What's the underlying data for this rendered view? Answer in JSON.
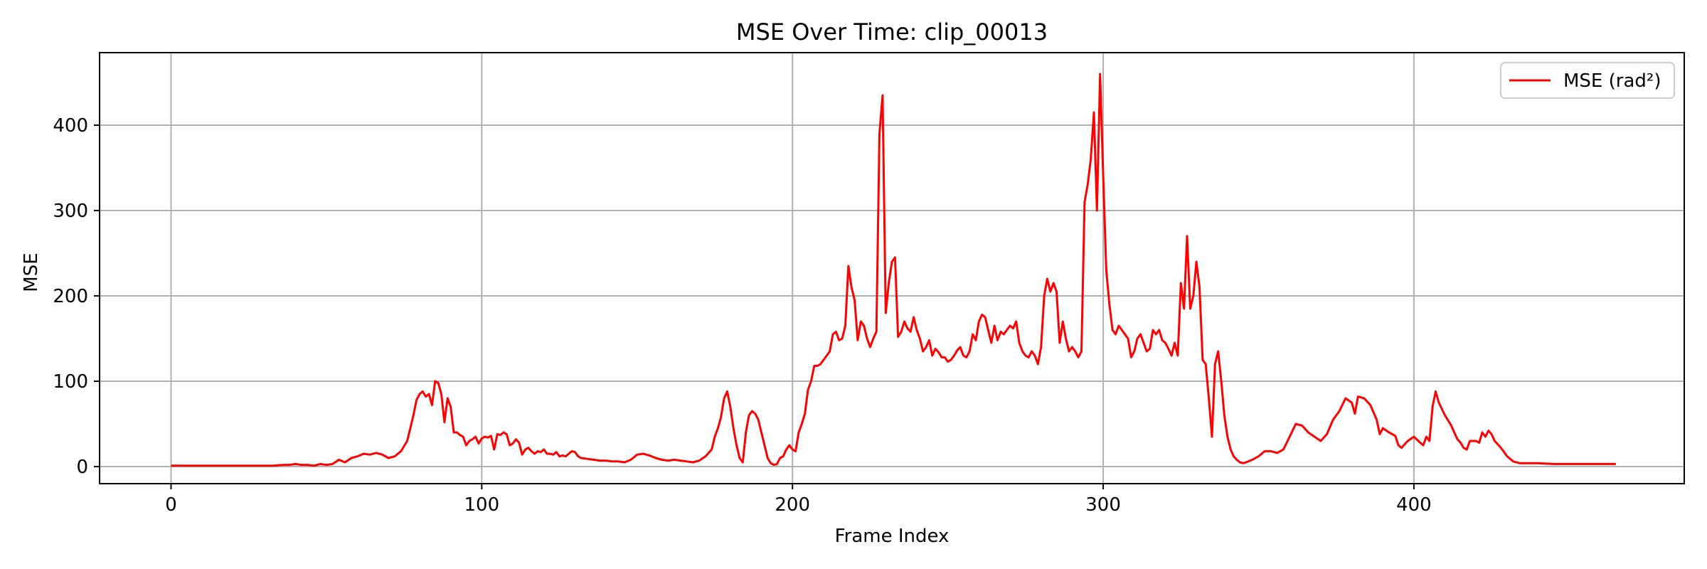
{
  "chart_data": {
    "type": "line",
    "title": "MSE Over Time: clip_00013",
    "xlabel": "Frame Index",
    "ylabel": "MSE",
    "xlim": [
      -23,
      487
    ],
    "ylim": [
      -20,
      485
    ],
    "xticks": [
      0,
      100,
      200,
      300,
      400
    ],
    "yticks": [
      0,
      100,
      200,
      300,
      400
    ],
    "grid": true,
    "legend_position": "top-right",
    "series": [
      {
        "name": "MSE (rad²)",
        "color": "#ff0000",
        "points": [
          [
            0,
            1
          ],
          [
            10,
            1
          ],
          [
            20,
            1
          ],
          [
            30,
            1
          ],
          [
            33,
            1
          ],
          [
            36,
            2
          ],
          [
            38,
            2
          ],
          [
            40,
            3
          ],
          [
            42,
            2
          ],
          [
            44,
            2
          ],
          [
            46,
            1
          ],
          [
            48,
            3
          ],
          [
            50,
            2
          ],
          [
            52,
            3
          ],
          [
            54,
            8
          ],
          [
            56,
            5
          ],
          [
            58,
            10
          ],
          [
            60,
            12
          ],
          [
            62,
            15
          ],
          [
            64,
            14
          ],
          [
            66,
            16
          ],
          [
            68,
            14
          ],
          [
            70,
            10
          ],
          [
            72,
            12
          ],
          [
            74,
            18
          ],
          [
            76,
            30
          ],
          [
            77,
            45
          ],
          [
            78,
            60
          ],
          [
            79,
            78
          ],
          [
            80,
            85
          ],
          [
            81,
            88
          ],
          [
            82,
            82
          ],
          [
            83,
            85
          ],
          [
            84,
            72
          ],
          [
            85,
            100
          ],
          [
            86,
            98
          ],
          [
            87,
            85
          ],
          [
            88,
            52
          ],
          [
            89,
            80
          ],
          [
            90,
            70
          ],
          [
            91,
            40
          ],
          [
            92,
            40
          ],
          [
            93,
            37
          ],
          [
            94,
            35
          ],
          [
            95,
            25
          ],
          [
            96,
            30
          ],
          [
            97,
            32
          ],
          [
            98,
            35
          ],
          [
            99,
            27
          ],
          [
            100,
            33
          ],
          [
            101,
            35
          ],
          [
            102,
            34
          ],
          [
            103,
            36
          ],
          [
            104,
            20
          ],
          [
            105,
            38
          ],
          [
            106,
            37
          ],
          [
            107,
            40
          ],
          [
            108,
            38
          ],
          [
            109,
            25
          ],
          [
            110,
            27
          ],
          [
            111,
            32
          ],
          [
            112,
            28
          ],
          [
            113,
            14
          ],
          [
            114,
            20
          ],
          [
            115,
            22
          ],
          [
            116,
            18
          ],
          [
            117,
            15
          ],
          [
            118,
            18
          ],
          [
            119,
            17
          ],
          [
            120,
            20
          ],
          [
            121,
            15
          ],
          [
            122,
            15
          ],
          [
            123,
            14
          ],
          [
            124,
            17
          ],
          [
            125,
            12
          ],
          [
            126,
            13
          ],
          [
            127,
            12
          ],
          [
            128,
            15
          ],
          [
            129,
            18
          ],
          [
            130,
            17
          ],
          [
            131,
            12
          ],
          [
            132,
            10
          ],
          [
            134,
            9
          ],
          [
            136,
            8
          ],
          [
            138,
            7
          ],
          [
            140,
            7
          ],
          [
            142,
            6
          ],
          [
            144,
            6
          ],
          [
            146,
            5
          ],
          [
            148,
            8
          ],
          [
            150,
            14
          ],
          [
            152,
            15
          ],
          [
            154,
            13
          ],
          [
            156,
            10
          ],
          [
            158,
            8
          ],
          [
            160,
            7
          ],
          [
            162,
            8
          ],
          [
            164,
            7
          ],
          [
            166,
            6
          ],
          [
            168,
            5
          ],
          [
            170,
            7
          ],
          [
            172,
            12
          ],
          [
            174,
            20
          ],
          [
            175,
            35
          ],
          [
            176,
            45
          ],
          [
            177,
            58
          ],
          [
            178,
            80
          ],
          [
            179,
            88
          ],
          [
            180,
            70
          ],
          [
            181,
            45
          ],
          [
            182,
            25
          ],
          [
            183,
            10
          ],
          [
            184,
            5
          ],
          [
            185,
            40
          ],
          [
            186,
            60
          ],
          [
            187,
            65
          ],
          [
            188,
            62
          ],
          [
            189,
            55
          ],
          [
            190,
            40
          ],
          [
            191,
            25
          ],
          [
            192,
            10
          ],
          [
            193,
            4
          ],
          [
            194,
            2
          ],
          [
            195,
            3
          ],
          [
            196,
            10
          ],
          [
            197,
            12
          ],
          [
            198,
            20
          ],
          [
            199,
            25
          ],
          [
            200,
            20
          ],
          [
            201,
            18
          ],
          [
            202,
            40
          ],
          [
            203,
            50
          ],
          [
            204,
            62
          ],
          [
            205,
            90
          ],
          [
            206,
            100
          ],
          [
            207,
            118
          ],
          [
            208,
            118
          ],
          [
            209,
            120
          ],
          [
            210,
            125
          ],
          [
            211,
            130
          ],
          [
            212,
            135
          ],
          [
            213,
            155
          ],
          [
            214,
            158
          ],
          [
            215,
            148
          ],
          [
            216,
            150
          ],
          [
            217,
            165
          ],
          [
            218,
            235
          ],
          [
            219,
            210
          ],
          [
            220,
            195
          ],
          [
            221,
            148
          ],
          [
            222,
            170
          ],
          [
            223,
            165
          ],
          [
            224,
            150
          ],
          [
            225,
            140
          ],
          [
            226,
            150
          ],
          [
            227,
            158
          ],
          [
            228,
            390
          ],
          [
            229,
            435
          ],
          [
            230,
            180
          ],
          [
            231,
            215
          ],
          [
            232,
            240
          ],
          [
            233,
            245
          ],
          [
            234,
            152
          ],
          [
            235,
            158
          ],
          [
            236,
            170
          ],
          [
            237,
            162
          ],
          [
            238,
            158
          ],
          [
            239,
            175
          ],
          [
            240,
            160
          ],
          [
            241,
            150
          ],
          [
            242,
            135
          ],
          [
            243,
            140
          ],
          [
            244,
            148
          ],
          [
            245,
            130
          ],
          [
            246,
            138
          ],
          [
            247,
            134
          ],
          [
            248,
            128
          ],
          [
            249,
            128
          ],
          [
            250,
            123
          ],
          [
            251,
            125
          ],
          [
            252,
            130
          ],
          [
            253,
            136
          ],
          [
            254,
            140
          ],
          [
            255,
            130
          ],
          [
            256,
            128
          ],
          [
            257,
            135
          ],
          [
            258,
            155
          ],
          [
            259,
            148
          ],
          [
            260,
            170
          ],
          [
            261,
            178
          ],
          [
            262,
            175
          ],
          [
            263,
            160
          ],
          [
            264,
            145
          ],
          [
            265,
            165
          ],
          [
            266,
            148
          ],
          [
            267,
            158
          ],
          [
            268,
            155
          ],
          [
            269,
            160
          ],
          [
            270,
            165
          ],
          [
            271,
            162
          ],
          [
            272,
            170
          ],
          [
            273,
            145
          ],
          [
            274,
            135
          ],
          [
            275,
            130
          ],
          [
            276,
            128
          ],
          [
            277,
            135
          ],
          [
            278,
            130
          ],
          [
            279,
            120
          ],
          [
            280,
            140
          ],
          [
            281,
            200
          ],
          [
            282,
            220
          ],
          [
            283,
            205
          ],
          [
            284,
            215
          ],
          [
            285,
            205
          ],
          [
            286,
            145
          ],
          [
            287,
            170
          ],
          [
            288,
            150
          ],
          [
            289,
            135
          ],
          [
            290,
            140
          ],
          [
            291,
            135
          ],
          [
            292,
            128
          ],
          [
            293,
            135
          ],
          [
            294,
            310
          ],
          [
            295,
            330
          ],
          [
            296,
            360
          ],
          [
            297,
            415
          ],
          [
            298,
            300
          ],
          [
            299,
            460
          ],
          [
            300,
            340
          ],
          [
            301,
            230
          ],
          [
            302,
            190
          ],
          [
            303,
            160
          ],
          [
            304,
            155
          ],
          [
            305,
            165
          ],
          [
            306,
            160
          ],
          [
            307,
            155
          ],
          [
            308,
            150
          ],
          [
            309,
            128
          ],
          [
            310,
            135
          ],
          [
            311,
            150
          ],
          [
            312,
            155
          ],
          [
            313,
            145
          ],
          [
            314,
            135
          ],
          [
            315,
            138
          ],
          [
            316,
            160
          ],
          [
            317,
            155
          ],
          [
            318,
            160
          ],
          [
            319,
            148
          ],
          [
            320,
            145
          ],
          [
            321,
            138
          ],
          [
            322,
            130
          ],
          [
            323,
            145
          ],
          [
            324,
            130
          ],
          [
            325,
            215
          ],
          [
            326,
            185
          ],
          [
            327,
            270
          ],
          [
            328,
            185
          ],
          [
            329,
            200
          ],
          [
            330,
            240
          ],
          [
            331,
            210
          ],
          [
            332,
            125
          ],
          [
            333,
            120
          ],
          [
            334,
            80
          ],
          [
            335,
            35
          ],
          [
            336,
            120
          ],
          [
            337,
            135
          ],
          [
            338,
            100
          ],
          [
            339,
            60
          ],
          [
            340,
            35
          ],
          [
            341,
            20
          ],
          [
            342,
            12
          ],
          [
            343,
            8
          ],
          [
            344,
            5
          ],
          [
            345,
            4
          ],
          [
            346,
            5
          ],
          [
            348,
            8
          ],
          [
            350,
            12
          ],
          [
            352,
            18
          ],
          [
            354,
            18
          ],
          [
            356,
            16
          ],
          [
            358,
            20
          ],
          [
            360,
            35
          ],
          [
            362,
            50
          ],
          [
            364,
            48
          ],
          [
            366,
            40
          ],
          [
            368,
            35
          ],
          [
            370,
            30
          ],
          [
            372,
            38
          ],
          [
            374,
            55
          ],
          [
            376,
            65
          ],
          [
            378,
            80
          ],
          [
            380,
            75
          ],
          [
            381,
            62
          ],
          [
            382,
            82
          ],
          [
            384,
            80
          ],
          [
            386,
            72
          ],
          [
            388,
            55
          ],
          [
            389,
            38
          ],
          [
            390,
            45
          ],
          [
            392,
            40
          ],
          [
            394,
            36
          ],
          [
            395,
            25
          ],
          [
            396,
            22
          ],
          [
            398,
            30
          ],
          [
            400,
            35
          ],
          [
            402,
            28
          ],
          [
            403,
            25
          ],
          [
            404,
            35
          ],
          [
            405,
            30
          ],
          [
            406,
            70
          ],
          [
            407,
            88
          ],
          [
            408,
            75
          ],
          [
            410,
            60
          ],
          [
            412,
            48
          ],
          [
            413,
            40
          ],
          [
            414,
            32
          ],
          [
            415,
            28
          ],
          [
            416,
            22
          ],
          [
            417,
            20
          ],
          [
            418,
            30
          ],
          [
            420,
            30
          ],
          [
            421,
            28
          ],
          [
            422,
            40
          ],
          [
            423,
            35
          ],
          [
            424,
            42
          ],
          [
            425,
            38
          ],
          [
            426,
            30
          ],
          [
            428,
            22
          ],
          [
            430,
            12
          ],
          [
            432,
            6
          ],
          [
            434,
            4
          ],
          [
            436,
            4
          ],
          [
            440,
            4
          ],
          [
            445,
            3
          ],
          [
            450,
            3
          ],
          [
            455,
            3
          ],
          [
            460,
            3
          ],
          [
            465,
            3
          ]
        ]
      }
    ]
  }
}
